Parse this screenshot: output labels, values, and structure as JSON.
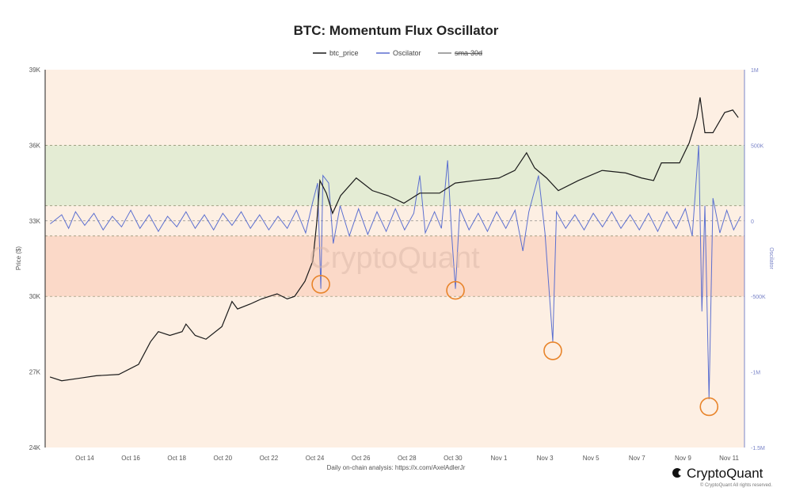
{
  "chart_data": {
    "type": "line",
    "title": "BTC: Momentum Flux Oscillator",
    "legend": [
      "btc_price",
      "Oscilator",
      "sma-30d"
    ],
    "legend_placement": "top-center",
    "ylabel": "Price ($)",
    "y2label": "Oscilator",
    "xlim_days": [
      0.28,
      30.67
    ],
    "ylim": [
      24000,
      39000
    ],
    "y2lim": [
      -1500000,
      1000000
    ],
    "y_ticks": [
      "39K",
      "36K",
      "33K",
      "30K",
      "27K",
      "24K"
    ],
    "y_tick_values": [
      39000,
      36000,
      33000,
      30000,
      27000,
      24000
    ],
    "y2_ticks": [
      "1M",
      "500K",
      "0",
      "-500K",
      "-1M",
      "-1.5M"
    ],
    "y2_tick_values": [
      1000000,
      500000,
      0,
      -500000,
      -1000000,
      -1500000
    ],
    "x_ticks": [
      "Oct 14",
      "Oct 16",
      "Oct 18",
      "Oct 20",
      "Oct 22",
      "Oct 24",
      "Oct 26",
      "Oct 28",
      "Oct 30",
      "Nov 1",
      "Nov 3",
      "Nov 5",
      "Nov 7",
      "Nov 9",
      "Nov 11"
    ],
    "x_tick_days": [
      2,
      4,
      6,
      8,
      10,
      12,
      14,
      16,
      18,
      20,
      22,
      24,
      26,
      28,
      30
    ],
    "x_unit": "days since Oct 12",
    "bands": [
      {
        "name": "green-zone",
        "from": 33600,
        "to": 36000,
        "color": "#e4ecd4"
      },
      {
        "name": "red-zone",
        "from": 30000,
        "to": 32400,
        "color": "#fbd9c8"
      }
    ],
    "colors": {
      "background": "#fdefe3",
      "price": "#1a1a1a",
      "oscillator": "#5b6fd0",
      "circle": "#e8842a"
    },
    "btc_price": [
      [
        0.49,
        26800
      ],
      [
        1.0,
        26650
      ],
      [
        1.76,
        26750
      ],
      [
        2.5,
        26850
      ],
      [
        3.48,
        26900
      ],
      [
        4.34,
        27300
      ],
      [
        4.86,
        28200
      ],
      [
        5.2,
        28600
      ],
      [
        5.7,
        28450
      ],
      [
        6.23,
        28600
      ],
      [
        6.4,
        28900
      ],
      [
        6.8,
        28450
      ],
      [
        7.27,
        28300
      ],
      [
        7.96,
        28800
      ],
      [
        8.4,
        29800
      ],
      [
        8.64,
        29500
      ],
      [
        9.2,
        29700
      ],
      [
        9.68,
        29900
      ],
      [
        10.36,
        30100
      ],
      [
        10.8,
        29900
      ],
      [
        11.12,
        30000
      ],
      [
        11.57,
        30600
      ],
      [
        11.91,
        31400
      ],
      [
        12.09,
        33000
      ],
      [
        12.22,
        34600
      ],
      [
        12.5,
        34100
      ],
      [
        12.77,
        33300
      ],
      [
        13.12,
        34000
      ],
      [
        13.8,
        34700
      ],
      [
        14.5,
        34200
      ],
      [
        15.18,
        34000
      ],
      [
        15.87,
        33700
      ],
      [
        16.56,
        34100
      ],
      [
        17.42,
        34100
      ],
      [
        18.1,
        34500
      ],
      [
        18.97,
        34600
      ],
      [
        20.0,
        34700
      ],
      [
        20.69,
        35000
      ],
      [
        21.2,
        35700
      ],
      [
        21.55,
        35100
      ],
      [
        22.07,
        34700
      ],
      [
        22.58,
        34200
      ],
      [
        23.45,
        34600
      ],
      [
        24.48,
        35000
      ],
      [
        25.51,
        34900
      ],
      [
        26.2,
        34700
      ],
      [
        26.72,
        34600
      ],
      [
        27.06,
        35300
      ],
      [
        27.85,
        35300
      ],
      [
        28.27,
        36100
      ],
      [
        28.6,
        37100
      ],
      [
        28.74,
        37900
      ],
      [
        28.95,
        36500
      ],
      [
        29.3,
        36500
      ],
      [
        29.81,
        37300
      ],
      [
        30.16,
        37400
      ],
      [
        30.4,
        37100
      ]
    ],
    "oscillator": [
      [
        0.5,
        -20000
      ],
      [
        1.0,
        40000
      ],
      [
        1.3,
        -50000
      ],
      [
        1.6,
        60000
      ],
      [
        2.0,
        -30000
      ],
      [
        2.4,
        50000
      ],
      [
        2.8,
        -60000
      ],
      [
        3.2,
        30000
      ],
      [
        3.6,
        -40000
      ],
      [
        4.0,
        70000
      ],
      [
        4.4,
        -50000
      ],
      [
        4.8,
        40000
      ],
      [
        5.2,
        -70000
      ],
      [
        5.6,
        30000
      ],
      [
        6.0,
        -40000
      ],
      [
        6.4,
        60000
      ],
      [
        6.8,
        -50000
      ],
      [
        7.2,
        40000
      ],
      [
        7.6,
        -60000
      ],
      [
        8.0,
        50000
      ],
      [
        8.4,
        -30000
      ],
      [
        8.8,
        60000
      ],
      [
        9.2,
        -50000
      ],
      [
        9.6,
        40000
      ],
      [
        10.0,
        -60000
      ],
      [
        10.4,
        30000
      ],
      [
        10.8,
        -50000
      ],
      [
        11.2,
        70000
      ],
      [
        11.6,
        -80000
      ],
      [
        11.9,
        120000
      ],
      [
        12.12,
        250000
      ],
      [
        12.26,
        -450000
      ],
      [
        12.35,
        300000
      ],
      [
        12.6,
        250000
      ],
      [
        12.8,
        -150000
      ],
      [
        13.1,
        100000
      ],
      [
        13.5,
        -100000
      ],
      [
        13.9,
        80000
      ],
      [
        14.3,
        -90000
      ],
      [
        14.7,
        60000
      ],
      [
        15.1,
        -70000
      ],
      [
        15.5,
        80000
      ],
      [
        15.9,
        -60000
      ],
      [
        16.3,
        50000
      ],
      [
        16.56,
        300000
      ],
      [
        16.8,
        -80000
      ],
      [
        17.2,
        60000
      ],
      [
        17.5,
        -50000
      ],
      [
        17.77,
        400000
      ],
      [
        17.95,
        -100000
      ],
      [
        18.11,
        -450000
      ],
      [
        18.3,
        80000
      ],
      [
        18.7,
        -60000
      ],
      [
        19.1,
        50000
      ],
      [
        19.5,
        -70000
      ],
      [
        19.9,
        60000
      ],
      [
        20.3,
        -50000
      ],
      [
        20.7,
        70000
      ],
      [
        21.04,
        -200000
      ],
      [
        21.3,
        60000
      ],
      [
        21.72,
        300000
      ],
      [
        22.0,
        -80000
      ],
      [
        22.34,
        -800000
      ],
      [
        22.5,
        60000
      ],
      [
        22.9,
        -50000
      ],
      [
        23.3,
        40000
      ],
      [
        23.7,
        -60000
      ],
      [
        24.1,
        50000
      ],
      [
        24.5,
        -40000
      ],
      [
        24.9,
        60000
      ],
      [
        25.3,
        -50000
      ],
      [
        25.7,
        40000
      ],
      [
        26.1,
        -60000
      ],
      [
        26.5,
        50000
      ],
      [
        26.9,
        -70000
      ],
      [
        27.3,
        60000
      ],
      [
        27.7,
        -50000
      ],
      [
        28.1,
        80000
      ],
      [
        28.4,
        -100000
      ],
      [
        28.68,
        500000
      ],
      [
        28.82,
        -600000
      ],
      [
        28.95,
        100000
      ],
      [
        29.13,
        -1180000
      ],
      [
        29.3,
        150000
      ],
      [
        29.6,
        -80000
      ],
      [
        29.9,
        70000
      ],
      [
        30.2,
        -60000
      ],
      [
        30.5,
        30000
      ]
    ],
    "highlight_circles": [
      [
        12.26,
        -420000
      ],
      [
        18.11,
        -460000
      ],
      [
        22.34,
        -860000
      ],
      [
        29.13,
        -1230000
      ]
    ]
  },
  "footer": {
    "analysis_text": "Daily on-chain analysis: https://x.com/AxelAdlerJr",
    "brand": "CryptoQuant",
    "copyright": "© CryptoQuant All rights reserved."
  }
}
